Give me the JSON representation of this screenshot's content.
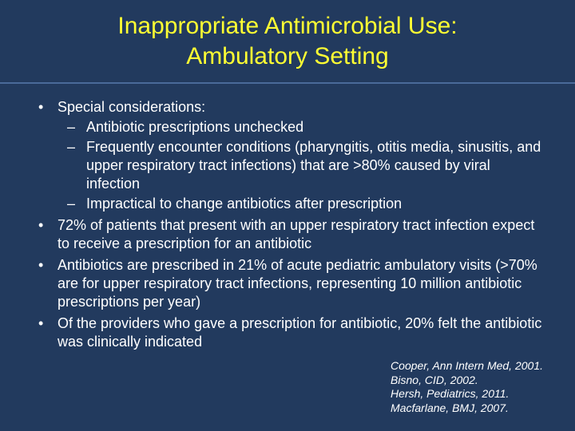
{
  "colors": {
    "background": "#223a5e",
    "title_text": "#ffff33",
    "body_text": "#ffffff",
    "divider": "#4a6a9a"
  },
  "typography": {
    "title_fontsize_pt": 30,
    "body_fontsize_pt": 18,
    "refs_fontsize_pt": 14,
    "font_family": "Arial"
  },
  "title": {
    "line1": "Inappropriate Antimicrobial Use:",
    "line2": "Ambulatory Setting"
  },
  "bullets": {
    "b1": {
      "text": "Special considerations:",
      "sub": {
        "s1": "Antibiotic prescriptions unchecked",
        "s2": "Frequently encounter conditions (pharyngitis, otitis media, sinusitis, and upper respiratory tract infections) that are >80% caused by viral infection",
        "s3": "Impractical to change antibiotics after prescription"
      }
    },
    "b2": "72% of patients that present with an upper respiratory tract infection expect to receive a prescription for an antibiotic",
    "b3": "Antibiotics are prescribed in 21% of acute pediatric ambulatory visits (>70% are for upper respiratory tract infections, representing 10 million antibiotic prescriptions per year)",
    "b4": "Of the providers who gave a prescription for antibiotic, 20% felt the antibiotic was clinically indicated"
  },
  "references": {
    "r1": "Cooper, Ann Intern Med, 2001.",
    "r2": "Bisno, CID, 2002.",
    "r3": "Hersh, Pediatrics, 2011.",
    "r4": "Macfarlane, BMJ, 2007."
  }
}
